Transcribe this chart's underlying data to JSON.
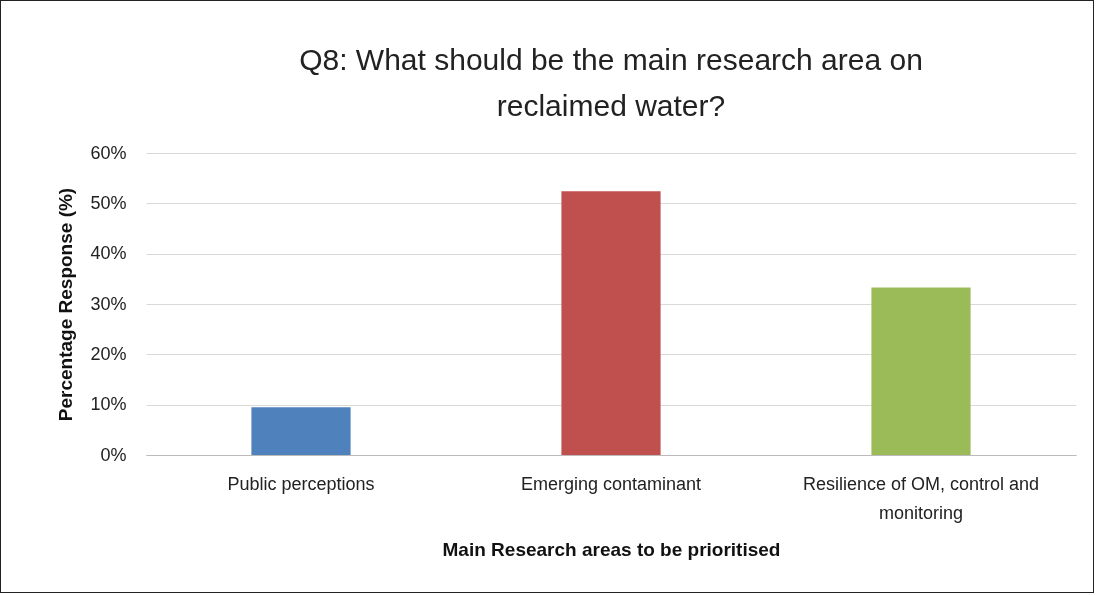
{
  "chart_data": {
    "type": "bar",
    "title": "Q8: What should be the main research area on reclaimed water?",
    "xlabel": "Main Research areas to be prioritised",
    "ylabel": "Percentage Response (%)",
    "categories": [
      "Public perceptions",
      "Emerging contaminant",
      "Resilience of OM, control and monitoring"
    ],
    "values": [
      9.5,
      52.4,
      33.3
    ],
    "colors": [
      "#4f81bd",
      "#c0504d",
      "#9bbb59"
    ],
    "ylim": [
      0,
      60
    ],
    "yticks": [
      {
        "value": 0,
        "label": "0%"
      },
      {
        "value": 10,
        "label": "10%"
      },
      {
        "value": 20,
        "label": "20%"
      },
      {
        "value": 30,
        "label": "30%"
      },
      {
        "value": 40,
        "label": "40%"
      },
      {
        "value": 50,
        "label": "50%"
      },
      {
        "value": 60,
        "label": "60%"
      }
    ],
    "grid": "y"
  }
}
